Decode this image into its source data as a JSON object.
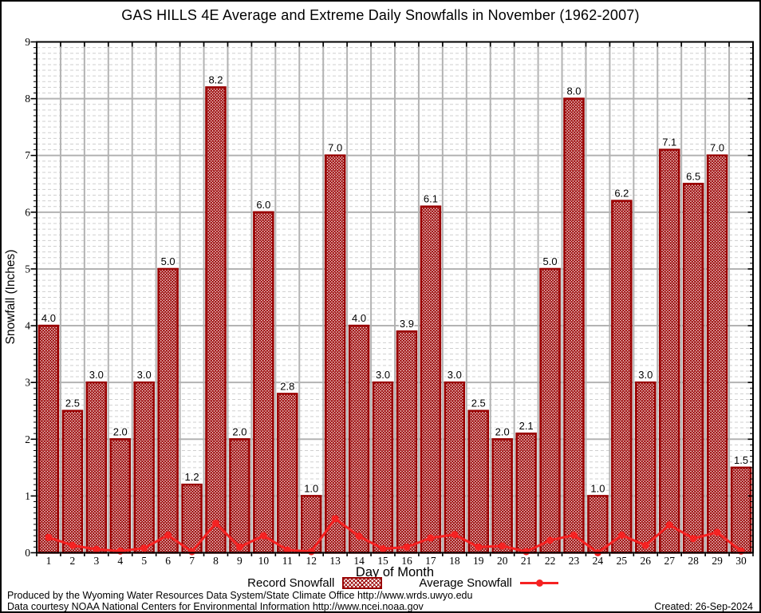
{
  "title": "GAS HILLS 4E Average and Extreme Daily Snowfalls in November (1962-2007)",
  "legend": {
    "record_label": "Record Snowfall",
    "average_label": "Average Snowfall"
  },
  "footer": {
    "produced": "Produced by the Wyoming Water Resources Data System/State Climate Office http://www.wrds.uwyo.edu",
    "courtesy": "Data courtesy NOAA National Centers for Environmental Information http://www.ncei.noaa.gov",
    "created": "Created: 26-Sep-2024"
  },
  "colors": {
    "bar": "#990000",
    "line": "#f52222",
    "grid_major": "#b3b3b3",
    "grid_minor": "#cfcfcf",
    "axis": "#000000",
    "background": "#ffffff",
    "text": "#000000"
  },
  "chart_data": {
    "type": "bar",
    "title": "GAS HILLS 4E Average and Extreme Daily Snowfalls in November (1962-2007)",
    "xlabel": "Day of Month",
    "ylabel": "Snowfall (Inches)",
    "ylim": [
      0,
      9
    ],
    "yticks": [
      0,
      1,
      2,
      3,
      4,
      5,
      6,
      7,
      8,
      9
    ],
    "minor_step": 0.1,
    "grid": "major solid at integers and day boundaries, minor dashed every 0.1",
    "legend_position": "bottom",
    "categories": [
      1,
      2,
      3,
      4,
      5,
      6,
      7,
      8,
      9,
      10,
      11,
      12,
      13,
      14,
      15,
      16,
      17,
      18,
      19,
      20,
      21,
      22,
      23,
      24,
      25,
      26,
      27,
      28,
      29,
      30
    ],
    "series": [
      {
        "name": "Record Snowfall",
        "type": "bar",
        "color": "#990000",
        "fill": "crosshatch",
        "values": [
          4.0,
          2.5,
          3.0,
          2.0,
          3.0,
          5.0,
          1.2,
          8.2,
          2.0,
          6.0,
          2.8,
          1.0,
          7.0,
          4.0,
          3.0,
          3.9,
          6.1,
          3.0,
          2.5,
          2.0,
          2.1,
          5.0,
          8.0,
          1.0,
          6.2,
          3.0,
          7.1,
          6.5,
          7.0,
          1.5
        ]
      },
      {
        "name": "Average Snowfall",
        "type": "line",
        "color": "#f52222",
        "marker": "circle",
        "values": [
          0.27,
          0.13,
          0.06,
          0.03,
          0.08,
          0.31,
          0.02,
          0.52,
          0.1,
          0.3,
          0.05,
          0.02,
          0.6,
          0.29,
          0.07,
          0.1,
          0.26,
          0.32,
          0.1,
          0.12,
          0.02,
          0.22,
          0.31,
          0.0,
          0.31,
          0.13,
          0.49,
          0.25,
          0.36,
          0.03
        ]
      }
    ]
  }
}
